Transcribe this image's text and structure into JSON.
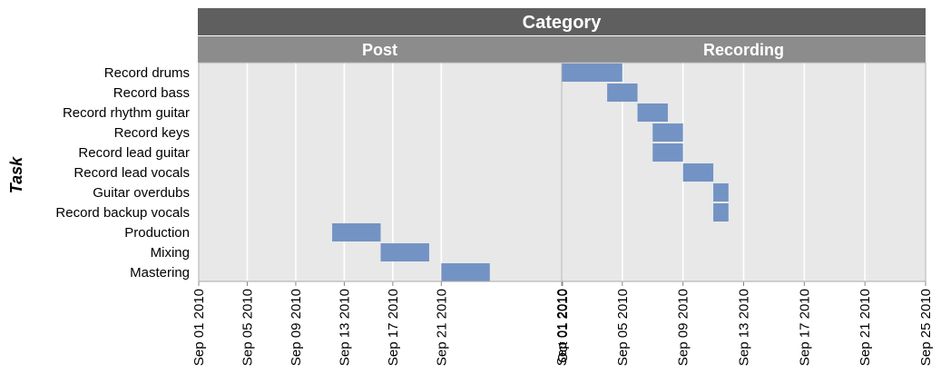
{
  "chart_data": {
    "type": "gantt",
    "title": "Category",
    "ylabel": "Task",
    "xlabel": "",
    "grid": true,
    "colors": {
      "bar": "#7393c4",
      "panel_bg": "#e8e8e8",
      "grid": "#ffffff",
      "strip_outer": "#5f5f5f",
      "strip_inner": "#8c8c8c",
      "border": "#aaaaaa"
    },
    "tasks": [
      "Record drums",
      "Record bass",
      "Record rhythm guitar",
      "Record keys",
      "Record lead guitar",
      "Record lead vocals",
      "Guitar overdubs",
      "Record backup vocals",
      "Production",
      "Mixing",
      "Mastering"
    ],
    "panels": [
      {
        "name": "Post",
        "xlim": [
          "2010-09-01",
          "2010-10-01"
        ],
        "ticks": [
          "Sep 01 2010",
          "Sep 05 2010",
          "Sep 09 2010",
          "Sep 13 2010",
          "Sep 17 2010",
          "Sep 21 2010",
          "Oct 01 2010"
        ],
        "bars": [
          {
            "task": "Production",
            "start": "2010-09-12",
            "end": "2010-09-16"
          },
          {
            "task": "Mixing",
            "start": "2010-09-16",
            "end": "2010-09-20"
          },
          {
            "task": "Mastering",
            "start": "2010-09-21",
            "end": "2010-09-25"
          }
        ]
      },
      {
        "name": "Recording",
        "xlim": [
          "2010-09-01",
          "2010-09-25"
        ],
        "ticks": [
          "Sep 01 2010",
          "Sep 05 2010",
          "Sep 09 2010",
          "Sep 13 2010",
          "Sep 17 2010",
          "Sep 21 2010",
          "Sep 25 2010"
        ],
        "bars": [
          {
            "task": "Record drums",
            "start": "2010-09-01",
            "end": "2010-09-05"
          },
          {
            "task": "Record bass",
            "start": "2010-09-04",
            "end": "2010-09-06"
          },
          {
            "task": "Record rhythm guitar",
            "start": "2010-09-06",
            "end": "2010-09-08"
          },
          {
            "task": "Record keys",
            "start": "2010-09-07",
            "end": "2010-09-09"
          },
          {
            "task": "Record lead guitar",
            "start": "2010-09-07",
            "end": "2010-09-09"
          },
          {
            "task": "Record lead vocals",
            "start": "2010-09-09",
            "end": "2010-09-11"
          },
          {
            "task": "Guitar overdubs",
            "start": "2010-09-11",
            "end": "2010-09-12"
          },
          {
            "task": "Record backup vocals",
            "start": "2010-09-11",
            "end": "2010-09-12"
          }
        ]
      }
    ]
  }
}
